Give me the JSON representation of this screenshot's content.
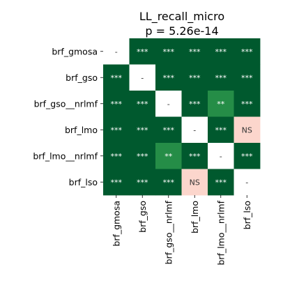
{
  "chart_data": {
    "type": "heatmap",
    "title": "LL_recall_micro",
    "subtitle": "p = 5.26e-14",
    "row_labels": [
      "brf_gmosa",
      "brf_gso",
      "brf_gso__nrlmf",
      "brf_lmo",
      "brf_lmo__nrlmf",
      "brf_lso"
    ],
    "col_labels": [
      "brf_gmosa",
      "brf_gso",
      "brf_gso__nrlmf",
      "brf_lmo",
      "brf_lmo__nrlmf",
      "brf_lso"
    ],
    "cells": [
      [
        "-",
        "***",
        "***",
        "***",
        "***",
        "***"
      ],
      [
        "***",
        "-",
        "***",
        "***",
        "***",
        "***"
      ],
      [
        "***",
        "***",
        "-",
        "***",
        "**",
        "***"
      ],
      [
        "***",
        "***",
        "***",
        "-",
        "***",
        "NS"
      ],
      [
        "***",
        "***",
        "**",
        "***",
        "-",
        "***"
      ],
      [
        "***",
        "***",
        "***",
        "NS",
        "***",
        "-"
      ]
    ],
    "colors": {
      "***": "#00592e",
      "**": "#258d47",
      "NS": "#fcd6cc",
      "-": "#ffffff"
    },
    "text_colors": {
      "***": "#ffffff",
      "**": "#ffffff",
      "NS": "#333333",
      "-": "#333333"
    }
  }
}
